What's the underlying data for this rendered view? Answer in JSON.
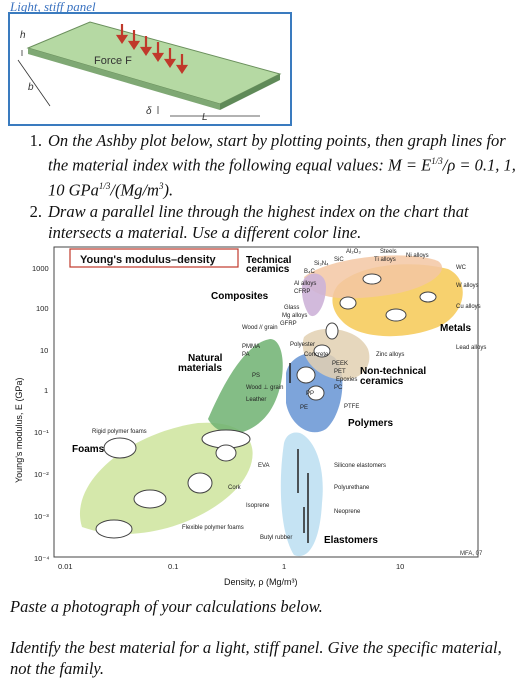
{
  "panel_figure": {
    "title": "Light, stiff panel",
    "labels": {
      "h": "h",
      "b": "b",
      "force": "Force F",
      "delta": "δ",
      "L": "L"
    }
  },
  "questions": [
    {
      "num": "1.",
      "text": "On the Ashby plot below, start by plotting points, then graph lines for the material index with the following equal values: M = E",
      "sup1": "1/3",
      "text2": "/ρ = 0.1, 1, 10  GPa",
      "sup2": "1/3",
      "text3": "/(Mg/m",
      "sup3": "3",
      "text4": ")."
    },
    {
      "num": "2.",
      "text": "Draw a parallel line through the highest index on the chart that intersects a material.  Use a different color line."
    }
  ],
  "chart_data": {
    "type": "scatter",
    "title": "Young's modulus–density",
    "xlabel": "Density, ρ (Mg/m³)",
    "ylabel": "Young's modulus, E (GPa)",
    "x_scale": "log",
    "y_scale": "log",
    "xlim": [
      0.01,
      30
    ],
    "ylim": [
      0.0001,
      1000
    ],
    "x_ticks": [
      "0.01",
      "0.1",
      "1",
      "10"
    ],
    "y_ticks": [
      "1000",
      "100",
      "10",
      "1",
      "10⁻¹",
      "10⁻²",
      "10⁻³",
      "10⁻⁴"
    ],
    "credit": "MFA, 07",
    "families": [
      {
        "name": "Technical ceramics",
        "color": "#f3c7a3"
      },
      {
        "name": "Composites",
        "color": "#cdb3d8"
      },
      {
        "name": "Metals",
        "color": "#f5c64a"
      },
      {
        "name": "Natural materials",
        "color": "#6fb271"
      },
      {
        "name": "Non-technical ceramics",
        "color": "#e2d0b2"
      },
      {
        "name": "Polymers",
        "color": "#6f9ad6"
      },
      {
        "name": "Foams",
        "color": "#c7e08f"
      },
      {
        "name": "Elastomers",
        "color": "#bfe0f2"
      }
    ],
    "materials": [
      "WC",
      "W alloys",
      "Cu alloys",
      "Lead alloys",
      "Ni alloys",
      "Steels",
      "Ti alloys",
      "Al₂O₃",
      "SiC",
      "Si₃N₄",
      "B₄C",
      "Al alloys",
      "CFRP",
      "Glass",
      "Mg alloys",
      "GFRP",
      "Wood // grain",
      "PMMA",
      "PA",
      "Polyester",
      "Concrete",
      "Zinc alloys",
      "PEEK",
      "PET",
      "Epoxies",
      "PC",
      "PS",
      "Wood ⊥ grain",
      "Leather",
      "PP",
      "PE",
      "PTFE",
      "Rigid polymer foams",
      "Silicone elastomers",
      "Polyurethane",
      "Neoprene",
      "EVA",
      "Cork",
      "Isoprene",
      "Butyl rubber",
      "Flexible polymer foams"
    ]
  },
  "bottom_text": [
    "Paste a photograph of your calculations below.",
    "Identify the best material for a light, stiff panel.  Give the specific material, not the family."
  ]
}
